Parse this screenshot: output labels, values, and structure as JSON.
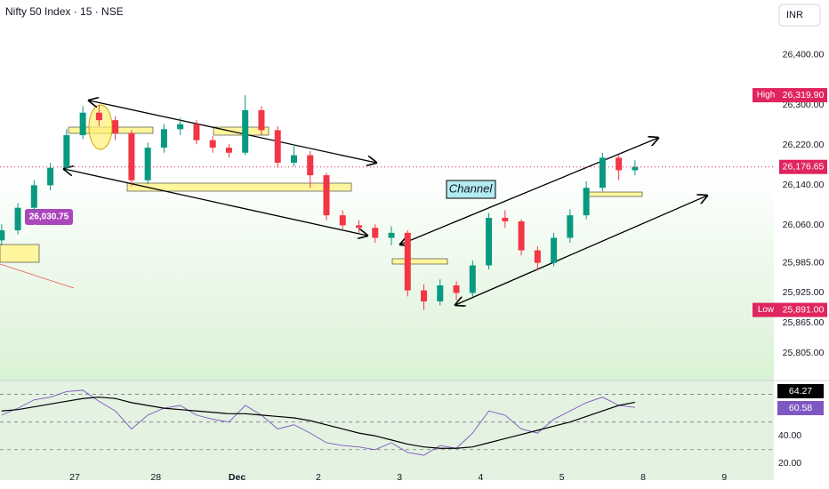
{
  "chart_data": [
    {
      "type": "candlestick",
      "title": "Nifty 50 Index · 15 · NSE",
      "currency": "INR",
      "up_color": "#089981",
      "down_color": "#f23645",
      "x": [
        -0.9,
        -0.7,
        -0.5,
        -0.3,
        -0.1,
        0.1,
        0.3,
        0.5,
        0.7,
        0.9,
        1.1,
        1.3,
        1.5,
        1.7,
        1.9,
        2.1,
        2.3,
        2.5,
        2.7,
        2.9,
        3.1,
        3.3,
        3.5,
        3.7,
        3.9,
        4.1,
        4.3,
        4.5,
        4.7,
        4.9,
        5.1,
        5.3,
        5.5,
        5.7,
        5.9,
        6.1,
        6.3,
        6.5,
        6.7,
        6.9
      ],
      "open": [
        26030,
        26050,
        26095,
        26140,
        26175,
        26240,
        26285,
        26270,
        26244,
        26150,
        26215,
        26252,
        26262,
        26230,
        26215,
        26205,
        26290,
        26250,
        26185,
        26200,
        26160,
        26080,
        26060,
        26055,
        26035,
        26045,
        25930,
        25908,
        25940,
        25925,
        25980,
        26075,
        26068,
        26010,
        25985,
        26035,
        26080,
        26135,
        26195,
        26170
      ],
      "high": [
        26062,
        26104,
        26150,
        26185,
        26252,
        26298,
        26300,
        26278,
        26250,
        26225,
        26262,
        26275,
        26270,
        26238,
        26222,
        26319.9,
        26298,
        26258,
        26222,
        26208,
        26165,
        26090,
        26070,
        26062,
        26058,
        26050,
        25942,
        25952,
        25948,
        25990,
        26085,
        26090,
        26072,
        26018,
        26045,
        26092,
        26148,
        26205,
        26200,
        26190
      ],
      "low": [
        26020,
        26042,
        26088,
        26130,
        26168,
        26232,
        26258,
        26230,
        26138,
        26142,
        26205,
        26240,
        26222,
        26205,
        26195,
        26200,
        26240,
        26175,
        26178,
        26135,
        26070,
        26050,
        26045,
        26025,
        26020,
        25918,
        25891,
        25900,
        25910,
        25918,
        25972,
        26055,
        26000,
        25970,
        25978,
        26025,
        26072,
        26128,
        26150,
        26160
      ],
      "close": [
        26050,
        26095,
        26140,
        26175,
        26240,
        26285,
        26270,
        26244,
        26150,
        26215,
        26252,
        26262,
        26230,
        26215,
        26205,
        26290,
        26250,
        26185,
        26200,
        26160,
        26080,
        26060,
        26055,
        26035,
        26045,
        25930,
        25908,
        25940,
        25925,
        25980,
        26075,
        26068,
        26010,
        25985,
        26035,
        26080,
        26135,
        26195,
        26170,
        26176.65
      ],
      "xlim": [
        -0.92,
        8.61
      ],
      "xticks": [
        {
          "value": 0,
          "label": "27"
        },
        {
          "value": 1,
          "label": "28"
        },
        {
          "value": 2,
          "label": "Dec"
        },
        {
          "value": 3,
          "label": "2"
        },
        {
          "value": 4,
          "label": "3"
        },
        {
          "value": 5,
          "label": "4"
        },
        {
          "value": 6,
          "label": "5"
        },
        {
          "value": 7,
          "label": "8"
        },
        {
          "value": 8,
          "label": "9"
        }
      ],
      "ylim": [
        25750,
        26510
      ],
      "yticks": [
        {
          "value": 26400,
          "label": "26,400.00"
        },
        {
          "value": 26300,
          "label": "26,300.00"
        },
        {
          "value": 26220,
          "label": "26,220.00"
        },
        {
          "value": 26140,
          "label": "26,140.00"
        },
        {
          "value": 26060,
          "label": "26,060.00"
        },
        {
          "value": 25985,
          "label": "25,985.00"
        },
        {
          "value": 25925,
          "label": "25,925.00"
        },
        {
          "value": 25865,
          "label": "25,865.00"
        },
        {
          "value": 25805,
          "label": "25,805.00"
        }
      ],
      "markers": [
        {
          "name": "High",
          "value": 26319.9,
          "value_label": "26,319.90",
          "color": "#e0245e"
        },
        {
          "value": 26176.65,
          "value_label": "26,176.65",
          "color": "#e0245e"
        },
        {
          "name": "Low",
          "value": 25891,
          "value_label": "25,891.00",
          "color": "#e0245e"
        }
      ],
      "annotations": [
        {
          "value": 26030.75,
          "label": "26,030.75"
        },
        {
          "label": "Channel"
        }
      ]
    },
    {
      "type": "line",
      "ylim": [
        8,
        80
      ],
      "yticks": [
        {
          "value": 40,
          "label": "40.00"
        },
        {
          "value": 20,
          "label": "20.00"
        }
      ],
      "levels": [
        70,
        50,
        30
      ],
      "series": [
        {
          "color": "#7e57c2",
          "values": [
            55,
            60,
            66,
            68,
            72,
            73,
            65,
            58,
            45,
            55,
            60,
            62,
            55,
            52,
            50,
            62,
            55,
            45,
            48,
            42,
            35,
            33,
            32,
            30,
            35,
            28,
            26,
            33,
            31,
            42,
            58,
            55,
            45,
            42,
            52,
            58,
            64,
            68,
            62,
            60.58
          ]
        },
        {
          "color": "#000000",
          "values": [
            58,
            59,
            61,
            63,
            65,
            67,
            68,
            67,
            64,
            62,
            60,
            59,
            58,
            57,
            56,
            56,
            55,
            54,
            53,
            51,
            48,
            45,
            42,
            40,
            37,
            34,
            32,
            31,
            31,
            32,
            35,
            38,
            41,
            44,
            47,
            50,
            54,
            58,
            62,
            64.27
          ]
        }
      ]
    }
  ]
}
